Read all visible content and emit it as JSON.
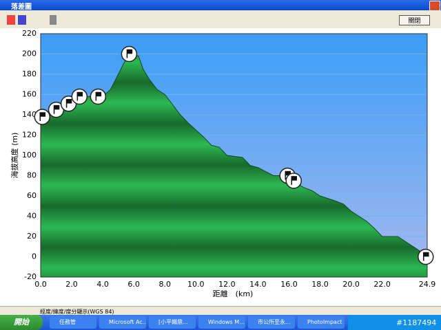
{
  "window": {
    "title": "落差圖",
    "close_button": "關閉",
    "status": "經度/緯度/度分顯示(WGS 84)"
  },
  "taskbar": {
    "start": "開始",
    "items": [
      "任務管",
      "Microsoft Ac...",
      "[小平鐵鼎...",
      "Windows M...",
      "市公所至永...",
      "PhotoImpact ..."
    ],
    "watermark": "#1187494"
  },
  "chart_data": {
    "type": "area",
    "x_label": "距離　(km)",
    "y_label": "海拔高度 (m)",
    "x": [
      0,
      0.5,
      1,
      1.5,
      2,
      2.5,
      3,
      3.5,
      4,
      4.5,
      5,
      5.5,
      5.8,
      6.3,
      6.6,
      7,
      7.5,
      8,
      8.5,
      9,
      9.5,
      10,
      10.5,
      11,
      11.5,
      12,
      13,
      13.5,
      14,
      15,
      15.5,
      16,
      16.5,
      17,
      17.5,
      18,
      19,
      19.5,
      20,
      20.5,
      21,
      21.5,
      22,
      23,
      23.5,
      24,
      24.5,
      24.9
    ],
    "values": [
      140,
      142,
      145,
      150,
      155,
      158,
      158,
      158,
      158,
      165,
      180,
      195,
      200,
      198,
      185,
      175,
      165,
      160,
      150,
      140,
      132,
      125,
      118,
      110,
      108,
      100,
      98,
      90,
      88,
      80,
      80,
      78,
      72,
      68,
      65,
      60,
      55,
      52,
      45,
      40,
      35,
      28,
      20,
      20,
      15,
      10,
      5,
      0
    ],
    "color": "#1f8a3c",
    "waypoints": {
      "x": [
        0.1,
        1.0,
        1.8,
        2.5,
        3.7,
        5.7,
        15.9,
        16.3,
        24.8
      ],
      "y": [
        138,
        145,
        151,
        158,
        158,
        200,
        80,
        75,
        0
      ]
    },
    "xlim": [
      0,
      24.9
    ],
    "ylim": [
      -20,
      220
    ],
    "xticks": [
      {
        "value": 0,
        "label": "0.0"
      },
      {
        "value": 2,
        "label": "2.0"
      },
      {
        "value": 4,
        "label": "4.0"
      },
      {
        "value": 6,
        "label": "6.0"
      },
      {
        "value": 8,
        "label": "8.0"
      },
      {
        "value": 10,
        "label": "10.0"
      },
      {
        "value": 12,
        "label": "12.0"
      },
      {
        "value": 14,
        "label": "14.0"
      },
      {
        "value": 16,
        "label": "16.0"
      },
      {
        "value": 18,
        "label": "18.0"
      },
      {
        "value": 20,
        "label": "20.0"
      },
      {
        "value": 22,
        "label": "22.0"
      },
      24.9
    ],
    "yticks": [
      -20,
      0,
      20,
      40,
      60,
      80,
      100,
      120,
      140,
      160,
      180,
      200,
      220
    ],
    "grid": true
  }
}
